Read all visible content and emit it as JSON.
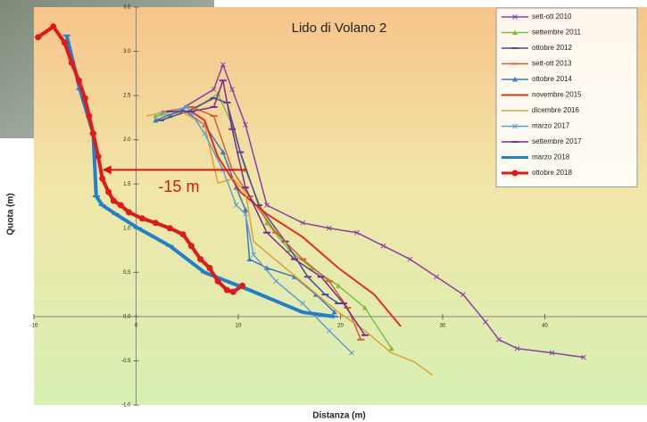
{
  "chart_data": {
    "type": "line",
    "title": "Lido di Volano 2",
    "x_label": "Distanza (m)",
    "y_label": "Quota (m)",
    "xlim": [
      -10,
      50
    ],
    "ylim": [
      -1,
      3.5
    ],
    "xticks": [
      -10,
      0,
      10,
      20,
      30,
      40
    ],
    "yticks": [
      3.5,
      {
        "value": 3,
        "label": "3.0"
      },
      2.5,
      {
        "value": 2,
        "label": "2.0"
      },
      1.5,
      {
        "value": 1,
        "label": "1.0"
      },
      0.5,
      {
        "value": 0,
        "label": "0.0"
      },
      -0.5,
      {
        "value": -1,
        "label": "-1.0"
      }
    ],
    "legend": "top-right",
    "annotation": {
      "text": "-15 m",
      "color": "#e01010",
      "arrow_x": [
        10.8,
        -3.3
      ],
      "arrow_y": 1.66
    },
    "series": [
      {
        "name": "sett-ott 2010",
        "color": "#8a3fa8",
        "marker": "x",
        "width": 1.5,
        "x": [
          3.3,
          7.6,
          8.5,
          9.4,
          10.7,
          12.8,
          16.3,
          18.9,
          21.6,
          24.2,
          26.8,
          29.4,
          32.0,
          34.2,
          35.5,
          37.3,
          40.7,
          43.8
        ],
        "values": [
          2.27,
          2.57,
          2.85,
          2.57,
          2.17,
          1.26,
          1.06,
          1.0,
          0.95,
          0.8,
          0.65,
          0.45,
          0.25,
          -0.06,
          -0.26,
          -0.36,
          -0.41,
          -0.46
        ]
      },
      {
        "name": "settembre 2011",
        "color": "#7cc03c",
        "marker": "triangle",
        "width": 1.5,
        "x": [
          1.9,
          5.4,
          8.0,
          9.4,
          10.7,
          12.8,
          15.0,
          17.2,
          19.8,
          22.4,
          25.0
        ],
        "values": [
          2.27,
          2.32,
          2.52,
          2.17,
          1.66,
          1.06,
          0.75,
          0.55,
          0.35,
          0.1,
          -0.36
        ]
      },
      {
        "name": "ottobre 2012",
        "color": "#4a4a9a",
        "marker": "dash",
        "width": 1.5,
        "x": [
          2.4,
          5.0,
          7.6,
          8.9,
          10.2,
          12.0,
          14.6,
          16.8,
          18.5,
          19.8
        ],
        "values": [
          2.22,
          2.32,
          2.47,
          2.42,
          1.86,
          1.26,
          0.85,
          0.45,
          0.25,
          0.15
        ]
      },
      {
        "name": "sett-ott 2013",
        "color": "#d8602c",
        "marker": "dash",
        "width": 1.5,
        "x": [
          2.8,
          5.4,
          7.6,
          9.4,
          11.1,
          13.7,
          16.3,
          18.9,
          20.7,
          22.0
        ],
        "values": [
          2.32,
          2.37,
          2.27,
          1.66,
          1.36,
          0.95,
          0.65,
          0.4,
          0.1,
          -0.26
        ]
      },
      {
        "name": "ottobre 2014",
        "color": "#3a78c0",
        "marker": "triangle",
        "width": 1.5,
        "x": [
          1.9,
          4.6,
          6.7,
          8.5,
          9.8,
          10.7,
          11.1,
          12.8,
          15.5,
          17.6,
          19.4
        ],
        "values": [
          2.22,
          2.34,
          2.17,
          1.86,
          1.46,
          1.21,
          0.65,
          0.55,
          0.45,
          0.25,
          0.05
        ]
      },
      {
        "name": "novembre 2015",
        "color": "#e2301c",
        "marker": null,
        "width": 2,
        "x": [
          5.4,
          6.7,
          8.0,
          10.2,
          12.8,
          16.3,
          19.8,
          23.3,
          25.9
        ],
        "values": [
          2.32,
          2.22,
          1.81,
          1.41,
          1.16,
          0.9,
          0.55,
          0.25,
          -0.11
        ]
      },
      {
        "name": "dicembre 2016",
        "color": "#e0a032",
        "marker": null,
        "width": 1.5,
        "x": [
          1.0,
          4.1,
          6.7,
          8.0,
          9.5,
          10.7,
          11.5,
          14.6,
          17.2,
          19.8,
          22.4,
          25.0,
          27.2,
          29.0
        ],
        "values": [
          2.27,
          2.34,
          2.17,
          1.51,
          1.56,
          1.41,
          0.85,
          0.55,
          0.3,
          0.05,
          -0.16,
          -0.41,
          -0.51,
          -0.66
        ]
      },
      {
        "name": "marzo 2017",
        "color": "#5fa0d4",
        "marker": "x",
        "width": 1.5,
        "x": [
          2.4,
          5.0,
          6.7,
          8.5,
          9.8,
          10.7,
          11.5,
          13.7,
          16.3,
          18.9,
          21.1
        ],
        "values": [
          2.29,
          2.37,
          2.07,
          1.66,
          1.26,
          1.16,
          0.7,
          0.4,
          0.15,
          -0.16,
          -0.41
        ]
      },
      {
        "name": "settembre 2017",
        "color": "#7a2c92",
        "marker": "dash",
        "width": 1.5,
        "x": [
          3.3,
          5.4,
          7.6,
          8.5,
          9.4,
          10.7,
          12.8,
          15.5,
          18.1,
          20.3,
          22.4
        ],
        "values": [
          2.32,
          2.32,
          2.37,
          2.67,
          2.12,
          1.46,
          0.95,
          0.65,
          0.45,
          0.15,
          -0.21
        ]
      },
      {
        "name": "marzo 2018",
        "color": "#1f80d0",
        "marker": "dash",
        "width": 4,
        "x": [
          -6.8,
          -5.5,
          -4.2,
          -3.9,
          -3.3,
          -2.0,
          0.2,
          3.3,
          6.7,
          11.1,
          16.3,
          19.4
        ],
        "values": [
          3.18,
          2.57,
          2.07,
          1.36,
          1.26,
          1.16,
          1.0,
          0.8,
          0.5,
          0.3,
          0.05,
          0.0
        ]
      },
      {
        "name": "ottobre 2018",
        "color": "#e01a1a",
        "marker": "circle",
        "width": 4,
        "x": [
          -9.6,
          -8.1,
          -7.0,
          -6.3,
          -5.6,
          -5.0,
          -4.6,
          -4.2,
          -3.7,
          -3.3,
          -2.7,
          -2.2,
          -1.5,
          -0.7,
          0.6,
          1.9,
          3.3,
          4.6,
          5.4,
          6.3,
          7.2,
          8.0,
          8.9,
          9.5,
          10.4
        ],
        "values": [
          3.16,
          3.28,
          3.1,
          2.87,
          2.67,
          2.47,
          2.27,
          2.07,
          1.81,
          1.56,
          1.41,
          1.31,
          1.26,
          1.18,
          1.11,
          1.06,
          1.0,
          0.93,
          0.8,
          0.65,
          0.55,
          0.4,
          0.3,
          0.28,
          0.35
        ]
      }
    ]
  }
}
